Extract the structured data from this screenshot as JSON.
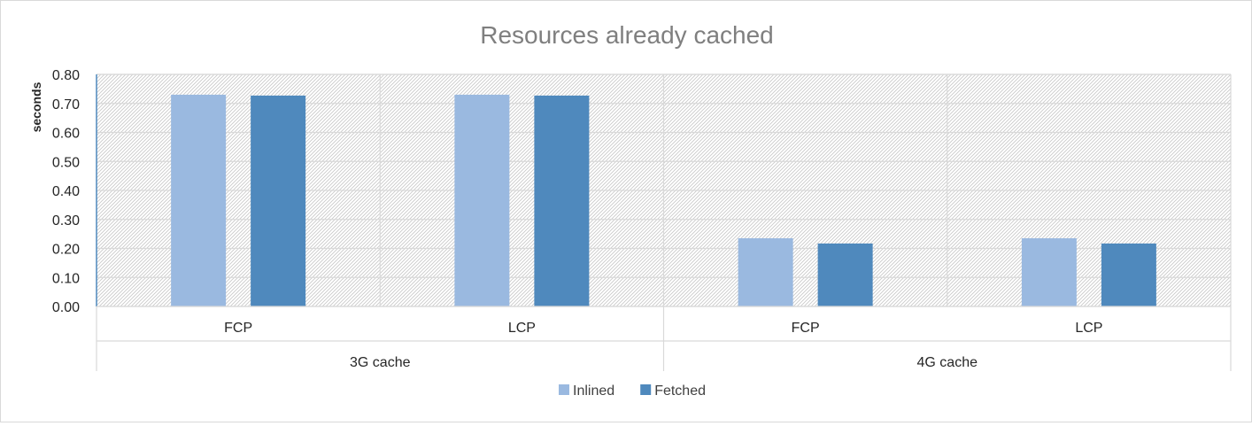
{
  "chart_data": {
    "type": "bar",
    "title": "Resources already cached",
    "ylabel": "seconds",
    "xlabel": "",
    "ylim": [
      0,
      0.8
    ],
    "ytick_step": 0.1,
    "yticks": [
      "0.00",
      "0.10",
      "0.20",
      "0.30",
      "0.40",
      "0.50",
      "0.60",
      "0.70",
      "0.80"
    ],
    "categories": [
      "FCP",
      "LCP",
      "FCP",
      "LCP"
    ],
    "groups": [
      {
        "label": "3G cache",
        "categories": [
          "FCP",
          "LCP"
        ]
      },
      {
        "label": "4G cache",
        "categories": [
          "FCP",
          "LCP"
        ]
      }
    ],
    "series": [
      {
        "name": "Inlined",
        "color": "#9ab9e0",
        "values": [
          0.73,
          0.73,
          0.235,
          0.235
        ]
      },
      {
        "name": "Fetched",
        "color": "#4f89bd",
        "values": [
          0.727,
          0.727,
          0.217,
          0.217
        ]
      }
    ],
    "grid": true,
    "legend": "bottom-center"
  }
}
